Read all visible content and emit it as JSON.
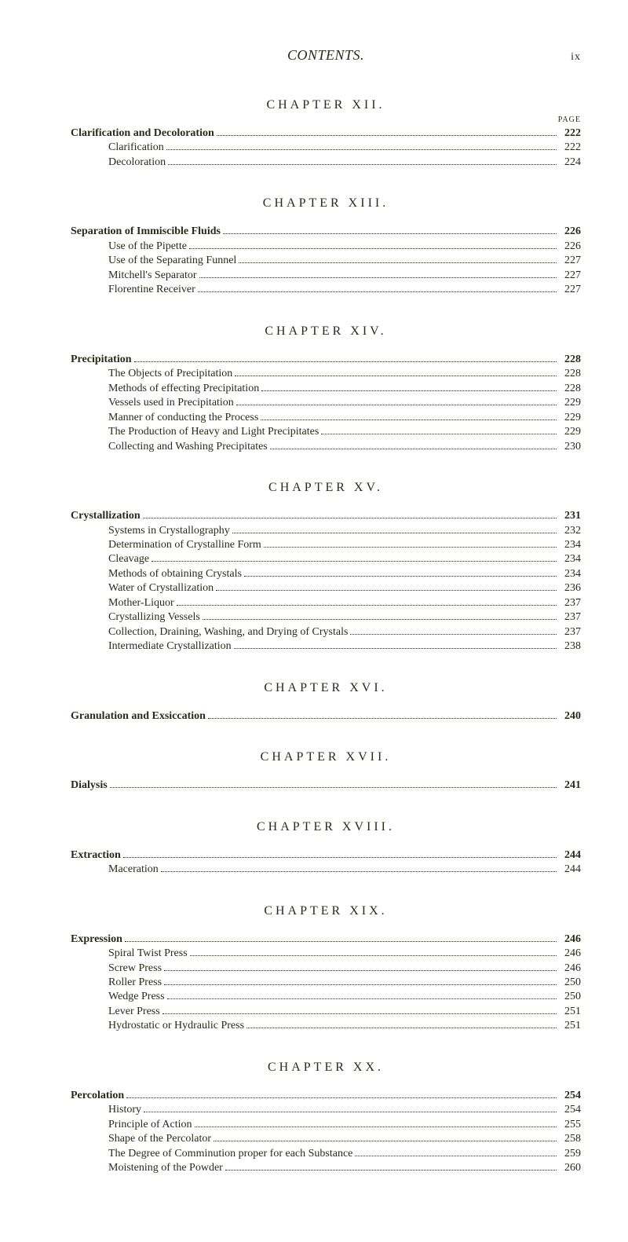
{
  "runningHead": {
    "title": "CONTENTS.",
    "folio": "ix"
  },
  "pageLabel": "PAGE",
  "colors": {
    "text": "#2a2a1a",
    "background": "#ffffff"
  },
  "typography": {
    "baseFontSize": 14,
    "headingLetterSpacing": 4
  },
  "chapters": [
    {
      "heading": "CHAPTER  XII.",
      "showPageLabel": true,
      "entries": [
        {
          "level": "main",
          "text": "Clarification and Decoloration",
          "page": "222"
        },
        {
          "level": "sub",
          "text": "Clarification",
          "page": "222"
        },
        {
          "level": "sub",
          "text": "Decoloration",
          "page": "224"
        }
      ]
    },
    {
      "heading": "CHAPTER  XIII.",
      "entries": [
        {
          "level": "main",
          "text": "Separation of Immiscible Fluids",
          "page": "226"
        },
        {
          "level": "sub",
          "text": "Use of the Pipette",
          "page": "226"
        },
        {
          "level": "sub",
          "text": "Use of the Separating Funnel",
          "page": "227"
        },
        {
          "level": "sub",
          "text": "Mitchell's Separator",
          "page": "227"
        },
        {
          "level": "sub",
          "text": "Florentine Receiver",
          "page": "227"
        }
      ]
    },
    {
      "heading": "CHAPTER  XIV.",
      "entries": [
        {
          "level": "main",
          "text": "Precipitation",
          "page": "228"
        },
        {
          "level": "sub",
          "text": "The Objects of Precipitation",
          "page": "228"
        },
        {
          "level": "sub",
          "text": "Methods of effecting Precipitation",
          "page": "228"
        },
        {
          "level": "sub",
          "text": "Vessels used in Precipitation",
          "page": "229"
        },
        {
          "level": "sub",
          "text": "Manner of conducting the Process",
          "page": "229"
        },
        {
          "level": "sub",
          "text": "The Production of Heavy and Light Precipitates",
          "page": "229"
        },
        {
          "level": "sub",
          "text": "Collecting and Washing Precipitates",
          "page": "230"
        }
      ]
    },
    {
      "heading": "CHAPTER  XV.",
      "entries": [
        {
          "level": "main",
          "text": "Crystallization",
          "page": "231"
        },
        {
          "level": "sub",
          "text": "Systems in Crystallography",
          "page": "232"
        },
        {
          "level": "sub",
          "text": "Determination of Crystalline Form",
          "page": "234"
        },
        {
          "level": "sub",
          "text": "Cleavage",
          "page": "234"
        },
        {
          "level": "sub",
          "text": "Methods of obtaining Crystals",
          "page": "234"
        },
        {
          "level": "sub",
          "text": "Water of Crystallization",
          "page": "236"
        },
        {
          "level": "sub",
          "text": "Mother-Liquor",
          "page": "237"
        },
        {
          "level": "sub",
          "text": "Crystallizing Vessels",
          "page": "237"
        },
        {
          "level": "sub",
          "text": "Collection, Draining, Washing, and Drying of Crystals",
          "page": "237"
        },
        {
          "level": "sub",
          "text": "Intermediate Crystallization",
          "page": "238"
        }
      ]
    },
    {
      "heading": "CHAPTER  XVI.",
      "entries": [
        {
          "level": "main",
          "text": "Granulation and Exsiccation",
          "page": "240"
        }
      ]
    },
    {
      "heading": "CHAPTER  XVII.",
      "entries": [
        {
          "level": "main",
          "text": "Dialysis",
          "page": "241"
        }
      ]
    },
    {
      "heading": "CHAPTER  XVIII.",
      "entries": [
        {
          "level": "main",
          "text": "Extraction",
          "page": "244"
        },
        {
          "level": "sub",
          "text": "Maceration",
          "page": "244"
        }
      ]
    },
    {
      "heading": "CHAPTER  XIX.",
      "entries": [
        {
          "level": "main",
          "text": "Expression",
          "page": "246"
        },
        {
          "level": "sub",
          "text": "Spiral Twist Press",
          "page": "246"
        },
        {
          "level": "sub",
          "text": "Screw Press",
          "page": "246"
        },
        {
          "level": "sub",
          "text": "Roller Press",
          "page": "250"
        },
        {
          "level": "sub",
          "text": "Wedge Press",
          "page": "250"
        },
        {
          "level": "sub",
          "text": "Lever Press",
          "page": "251"
        },
        {
          "level": "sub",
          "text": "Hydrostatic or Hydraulic Press",
          "page": "251"
        }
      ]
    },
    {
      "heading": "CHAPTER  XX.",
      "entries": [
        {
          "level": "main",
          "text": "Percolation",
          "page": "254"
        },
        {
          "level": "sub",
          "text": "History",
          "page": "254"
        },
        {
          "level": "sub",
          "text": "Principle of Action",
          "page": "255"
        },
        {
          "level": "sub",
          "text": "Shape of the Percolator",
          "page": "258"
        },
        {
          "level": "sub",
          "text": "The Degree of Comminution proper for each Substance",
          "page": "259"
        },
        {
          "level": "sub",
          "text": "Moistening of the Powder",
          "page": "260"
        }
      ]
    }
  ]
}
